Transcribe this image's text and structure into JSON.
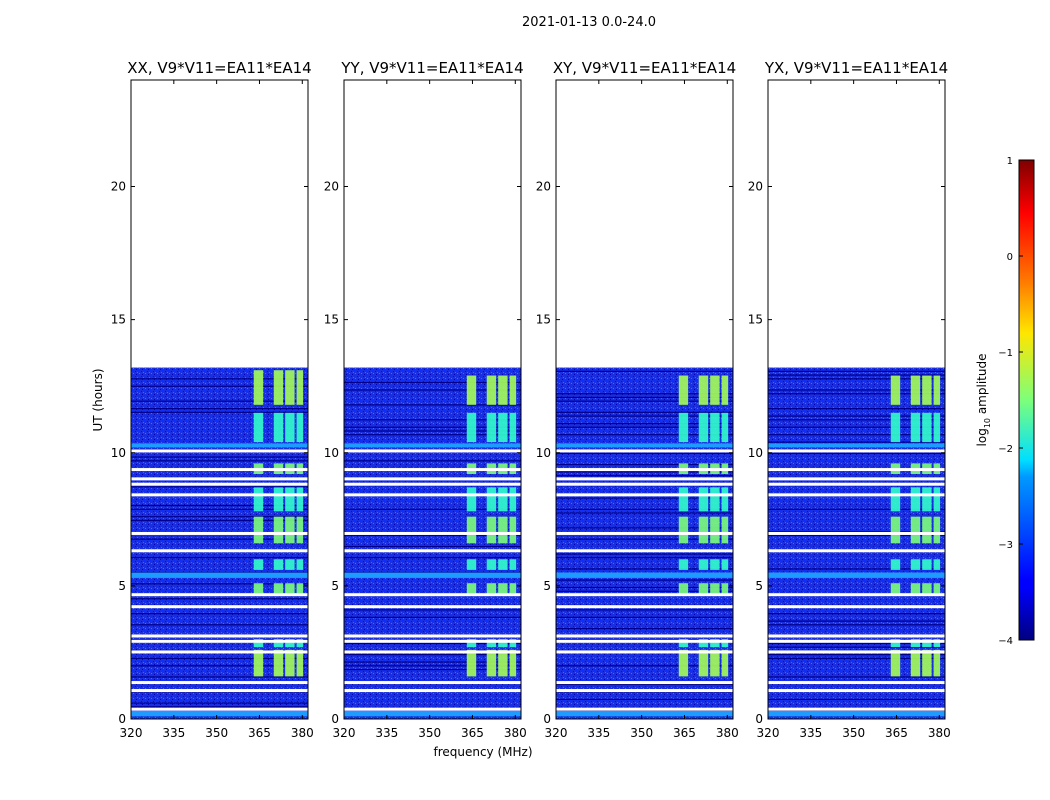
{
  "chart_data": {
    "type": "heatmap",
    "suptitle": "2021-01-13 0.0-24.0",
    "xlabel": "frequency (MHz)",
    "ylabel": "UT (hours)",
    "xlim": [
      320,
      382
    ],
    "ylim": [
      0,
      24
    ],
    "xticks": [
      320,
      335,
      350,
      365,
      380
    ],
    "yticks": [
      0,
      5,
      10,
      15,
      20
    ],
    "data_extent_hours": [
      0,
      13.2
    ],
    "rfi_band_mhz": [
      363,
      380
    ],
    "rfi_channels_mhz": [
      [
        363,
        367
      ],
      [
        370,
        374
      ],
      [
        374,
        378
      ],
      [
        378,
        381
      ]
    ],
    "panels": [
      {
        "title": "XX, V9*V11=EA11*EA14",
        "rfi_start_mhz": 363
      },
      {
        "title": "YY, V9*V11=EA11*EA14",
        "rfi_start_mhz": 363
      },
      {
        "title": "XY, V9*V11=EA11*EA14",
        "rfi_start_mhz": 363
      },
      {
        "title": "YX, V9*V11=EA11*EA14",
        "rfi_start_mhz": 363
      }
    ],
    "flagged_hours": [
      0.35,
      1.05,
      1.35,
      2.5,
      2.9,
      3.1,
      4.2,
      4.65,
      6.3,
      6.95,
      8.4,
      8.8,
      9.0,
      9.35,
      10.05
    ],
    "bright_hours": [
      [
        5.3,
        5.5
      ],
      [
        10.2,
        10.35
      ],
      [
        0.1,
        0.3
      ]
    ],
    "colorbar": {
      "label": "log10 amplitude",
      "label_main": "log",
      "label_sub": "10",
      "label_tail": " amplitude",
      "vmin": -4,
      "vmax": 1,
      "ticks": [
        1,
        0,
        -1,
        -2,
        -3,
        -4
      ],
      "tick_labels": [
        "1",
        "0",
        "−1",
        "−2",
        "−3",
        "−4"
      ],
      "colormap": "jet"
    }
  }
}
